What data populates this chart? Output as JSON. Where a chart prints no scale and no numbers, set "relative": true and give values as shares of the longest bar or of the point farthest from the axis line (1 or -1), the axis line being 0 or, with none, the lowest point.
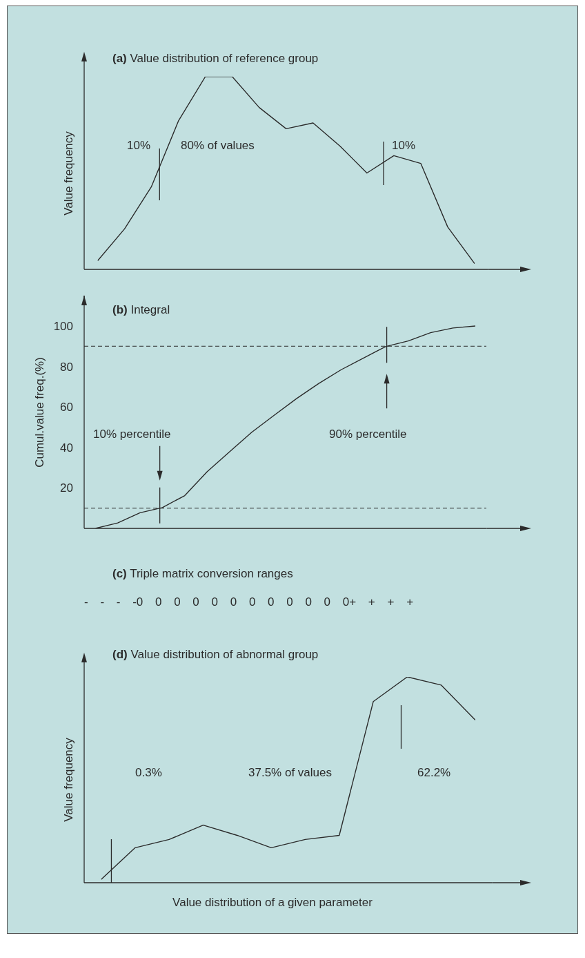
{
  "chart_data": [
    {
      "type": "line",
      "title": "(a) Value distribution of reference group",
      "ylabel": "Value frequency",
      "relative": true,
      "categories": [
        null,
        null,
        null,
        null,
        null,
        null,
        null,
        null,
        null,
        null,
        null,
        null,
        null,
        null,
        null
      ],
      "values": [
        0.045,
        0.21,
        0.43,
        0.77,
        1,
        1,
        0.84,
        0.73,
        0.76,
        0.64,
        0.5,
        0.59,
        0.55,
        0.22,
        0.03
      ],
      "color": "#2b2b2b",
      "annotations": [
        "10%",
        "80% of values",
        "10%"
      ]
    },
    {
      "type": "line",
      "title": "(b) Integral",
      "ylabel": "Cumul.value freq.(%)",
      "categories": [
        null,
        null,
        null,
        null,
        null,
        null,
        null,
        null,
        null,
        null,
        null,
        null,
        null,
        null,
        null,
        null,
        null,
        null
      ],
      "values": [
        0,
        2.7,
        7.7,
        10.3,
        16.2,
        28,
        37.8,
        47.5,
        55.9,
        64.1,
        71.6,
        78.4,
        84.2,
        89.9,
        92.6,
        96.7,
        99,
        100
      ],
      "color": "#2b2b2b",
      "ylim": [
        0,
        115
      ],
      "yticks": [
        20,
        40,
        60,
        80,
        100
      ],
      "ref_lines": [
        {
          "axis": "y",
          "value": 10,
          "color": "#2b2b2b",
          "line_style": "dashed"
        },
        {
          "axis": "y",
          "value": 90,
          "color": "#2b2b2b",
          "line_style": "dashed"
        }
      ],
      "annotations": [
        "10% percentile",
        "90% percentile"
      ]
    },
    {
      "type": "other",
      "title": "(c) Triple matrix conversion ranges",
      "annotations": [
        "- - - -0 0 0 0 0 0 0 0 0 0 0 0+ + + +"
      ]
    },
    {
      "type": "line",
      "title": "(d) Value distribution of abnormal group",
      "xlabel": "Value distribution of a given parameter",
      "ylabel": "Value frequency",
      "relative": true,
      "categories": [
        null,
        null,
        null,
        null,
        null,
        null,
        null,
        null,
        null,
        null,
        null,
        null
      ],
      "values": [
        0.016,
        0.17,
        0.21,
        0.28,
        0.23,
        0.17,
        0.21,
        0.23,
        0.88,
        1,
        0.96,
        0.79
      ],
      "color": "#2b2b2b",
      "annotations": [
        "0.3%",
        "37.5% of values",
        "62.2%"
      ]
    }
  ]
}
